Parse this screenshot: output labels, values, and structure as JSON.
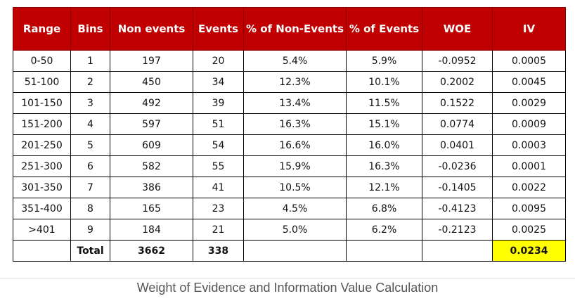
{
  "table": {
    "headers": [
      "Range",
      "Bins",
      "Non events",
      "Events",
      "% of Non-Events",
      "% of Events",
      "WOE",
      "IV"
    ],
    "rows": [
      [
        "0-50",
        "1",
        "197",
        "20",
        "5.4%",
        "5.9%",
        "-0.0952",
        "0.0005"
      ],
      [
        "51-100",
        "2",
        "450",
        "34",
        "12.3%",
        "10.1%",
        "0.2002",
        "0.0045"
      ],
      [
        "101-150",
        "3",
        "492",
        "39",
        "13.4%",
        "11.5%",
        "0.1522",
        "0.0029"
      ],
      [
        "151-200",
        "4",
        "597",
        "51",
        "16.3%",
        "15.1%",
        "0.0774",
        "0.0009"
      ],
      [
        "201-250",
        "5",
        "609",
        "54",
        "16.6%",
        "16.0%",
        "0.0401",
        "0.0003"
      ],
      [
        "251-300",
        "6",
        "582",
        "55",
        "15.9%",
        "16.3%",
        "-0.0236",
        "0.0001"
      ],
      [
        "301-350",
        "7",
        "386",
        "41",
        "10.5%",
        "12.1%",
        "-0.1405",
        "0.0022"
      ],
      [
        "351-400",
        "8",
        "165",
        "23",
        "4.5%",
        "6.8%",
        "-0.4123",
        "0.0095"
      ],
      [
        ">401",
        "9",
        "184",
        "21",
        "5.0%",
        "6.2%",
        "-0.2123",
        "0.0025"
      ]
    ],
    "total": {
      "label": "Total",
      "non_events": "3662",
      "events": "338",
      "iv": "0.0234"
    },
    "colors": {
      "header_bg": "#c00000",
      "header_text": "#ffffff",
      "iv_total_highlight": "#ffff00"
    }
  },
  "caption": "Weight of Evidence and Information Value Calculation"
}
